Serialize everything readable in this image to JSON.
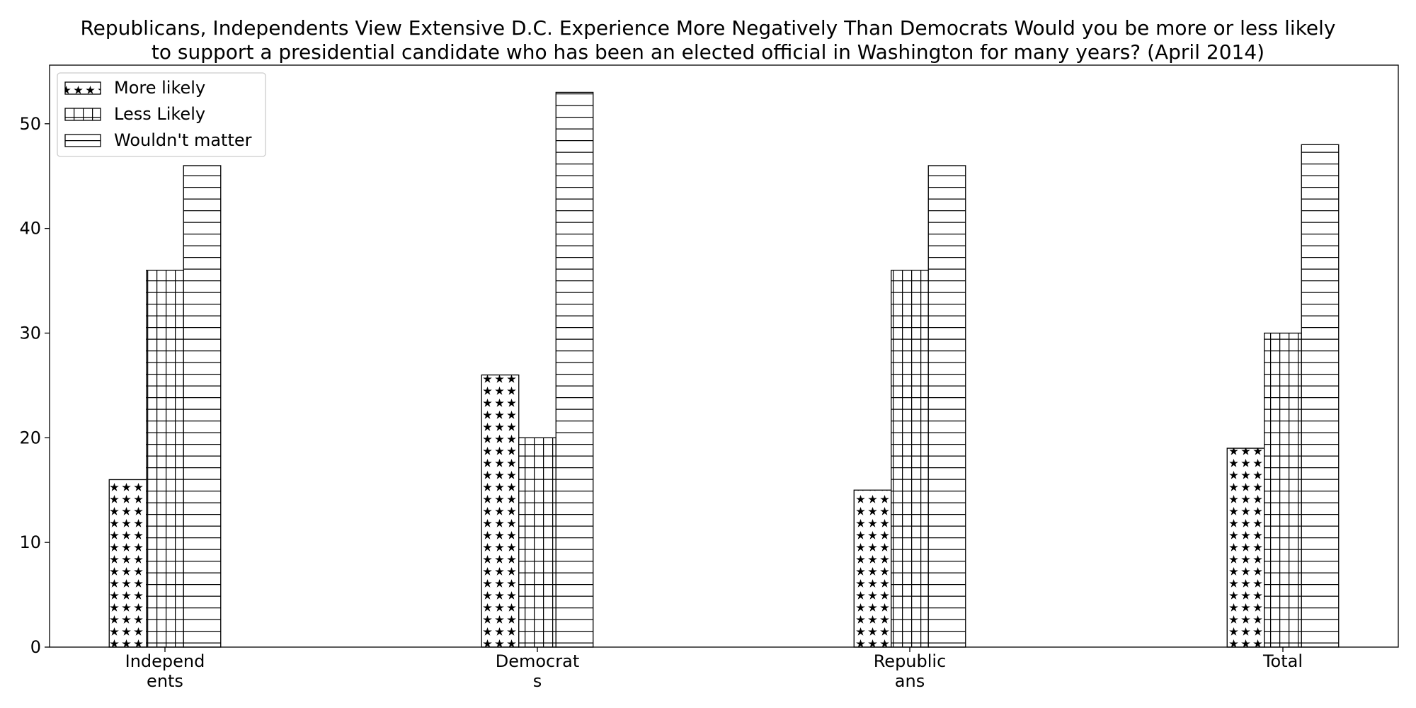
{
  "chart_data": {
    "type": "bar",
    "title_lines": [
      "Republicans, Independents View Extensive D.C. Experience More Negatively Than Democrats Would you be more or less likely",
      "to support a presidential candidate who has been an elected official in Washington for many years? (April 2014)"
    ],
    "categories": [
      [
        "Independ",
        "ents"
      ],
      [
        "Democrat",
        "s"
      ],
      [
        "Republic",
        "ans"
      ],
      [
        "Total"
      ]
    ],
    "series": [
      {
        "name": "More likely",
        "values": [
          16,
          26,
          15,
          19
        ],
        "pattern": "stars"
      },
      {
        "name": "Less Likely",
        "values": [
          36,
          20,
          36,
          30
        ],
        "pattern": "grid"
      },
      {
        "name": "Wouldn't matter",
        "values": [
          46,
          53,
          46,
          48
        ],
        "pattern": "hlines"
      }
    ],
    "ylim": [
      0,
      55.6
    ],
    "yticks": [
      0,
      10,
      20,
      30,
      40,
      50
    ],
    "xlabel": "",
    "ylabel": "",
    "grid": false,
    "legend_position": "top-left",
    "colors": {
      "bar_fill": "#ffffff",
      "bar_edge": "#000000",
      "background": "#ffffff"
    }
  }
}
